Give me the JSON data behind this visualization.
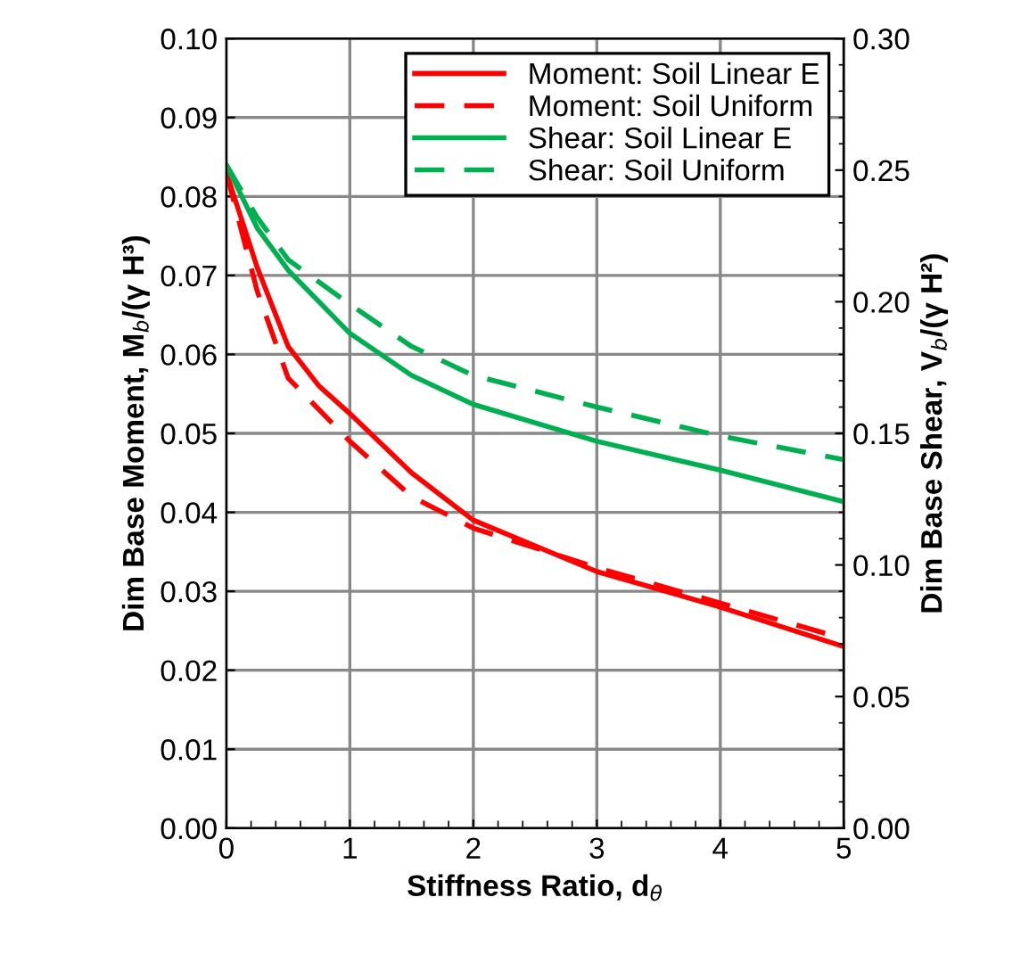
{
  "chart_data": {
    "type": "line",
    "xlabel": "Stiffness Ratio, d$_{θ}$",
    "ylabel": "Dim Base Moment, M$_{b}$/(γ H³)",
    "y2label": "Dim Base Shear, V$_{b}$/(γ H²)",
    "xlim": [
      0,
      5
    ],
    "xticks": [
      0,
      1,
      2,
      3,
      4,
      5
    ],
    "ylim": [
      0,
      0.1
    ],
    "yticks": [
      {
        "value": 0,
        "label": "0.00"
      },
      {
        "value": 0.01,
        "label": "0.01"
      },
      {
        "value": 0.02,
        "label": "0.02"
      },
      {
        "value": 0.03,
        "label": "0.03"
      },
      {
        "value": 0.04,
        "label": "0.04"
      },
      {
        "value": 0.05,
        "label": "0.05"
      },
      {
        "value": 0.06,
        "label": "0.06"
      },
      {
        "value": 0.07,
        "label": "0.07"
      },
      {
        "value": 0.08,
        "label": "0.08"
      },
      {
        "value": 0.09,
        "label": "0.09"
      },
      {
        "value": 0.1,
        "label": "0.10"
      }
    ],
    "y2lim": [
      0,
      0.3
    ],
    "y2ticks": [
      {
        "value": 0,
        "label": "0.00"
      },
      {
        "value": 0.05,
        "label": "0.05"
      },
      {
        "value": 0.1,
        "label": "0.10"
      },
      {
        "value": 0.15,
        "label": "0.15"
      },
      {
        "value": 0.2,
        "label": "0.20"
      },
      {
        "value": 0.25,
        "label": "0.25"
      },
      {
        "value": 0.3,
        "label": "0.30"
      }
    ],
    "grid": true,
    "legend": "top right",
    "series": [
      {
        "name": "Moment: Soil Linear E",
        "color": "#ff0000",
        "line_style": "solid",
        "x": [
          0,
          0.25,
          0.5,
          0.75,
          1,
          1.5,
          2,
          3,
          4,
          5
        ],
        "values": [
          0.083,
          0.071,
          0.061,
          0.056,
          0.0525,
          0.045,
          0.039,
          0.0325,
          0.028,
          0.023
        ]
      },
      {
        "name": "Moment: Soil Uniform",
        "color": "#ff0000",
        "line_style": "dashed",
        "x": [
          0,
          0.25,
          0.5,
          1,
          1.5,
          2,
          3,
          4,
          5
        ],
        "values": [
          0.083,
          0.068,
          0.057,
          0.049,
          0.042,
          0.038,
          0.033,
          0.0285,
          0.024
        ]
      },
      {
        "name": "Shear: Soil Linear E",
        "color": "#00b050",
        "line_style": "solid",
        "axis": "y2",
        "x": [
          0,
          0.25,
          0.5,
          1,
          1.5,
          2,
          3,
          4,
          5
        ],
        "values": [
          0.252,
          0.228,
          0.212,
          0.188,
          0.172,
          0.161,
          0.147,
          0.136,
          0.124
        ]
      },
      {
        "name": "Shear: Soil Uniform",
        "color": "#00b050",
        "line_style": "dashed",
        "axis": "y2",
        "x": [
          0,
          0.25,
          0.5,
          1,
          1.5,
          2,
          3,
          4,
          5
        ],
        "values": [
          0.252,
          0.232,
          0.216,
          0.199,
          0.183,
          0.172,
          0.16,
          0.149,
          0.14
        ]
      }
    ]
  }
}
